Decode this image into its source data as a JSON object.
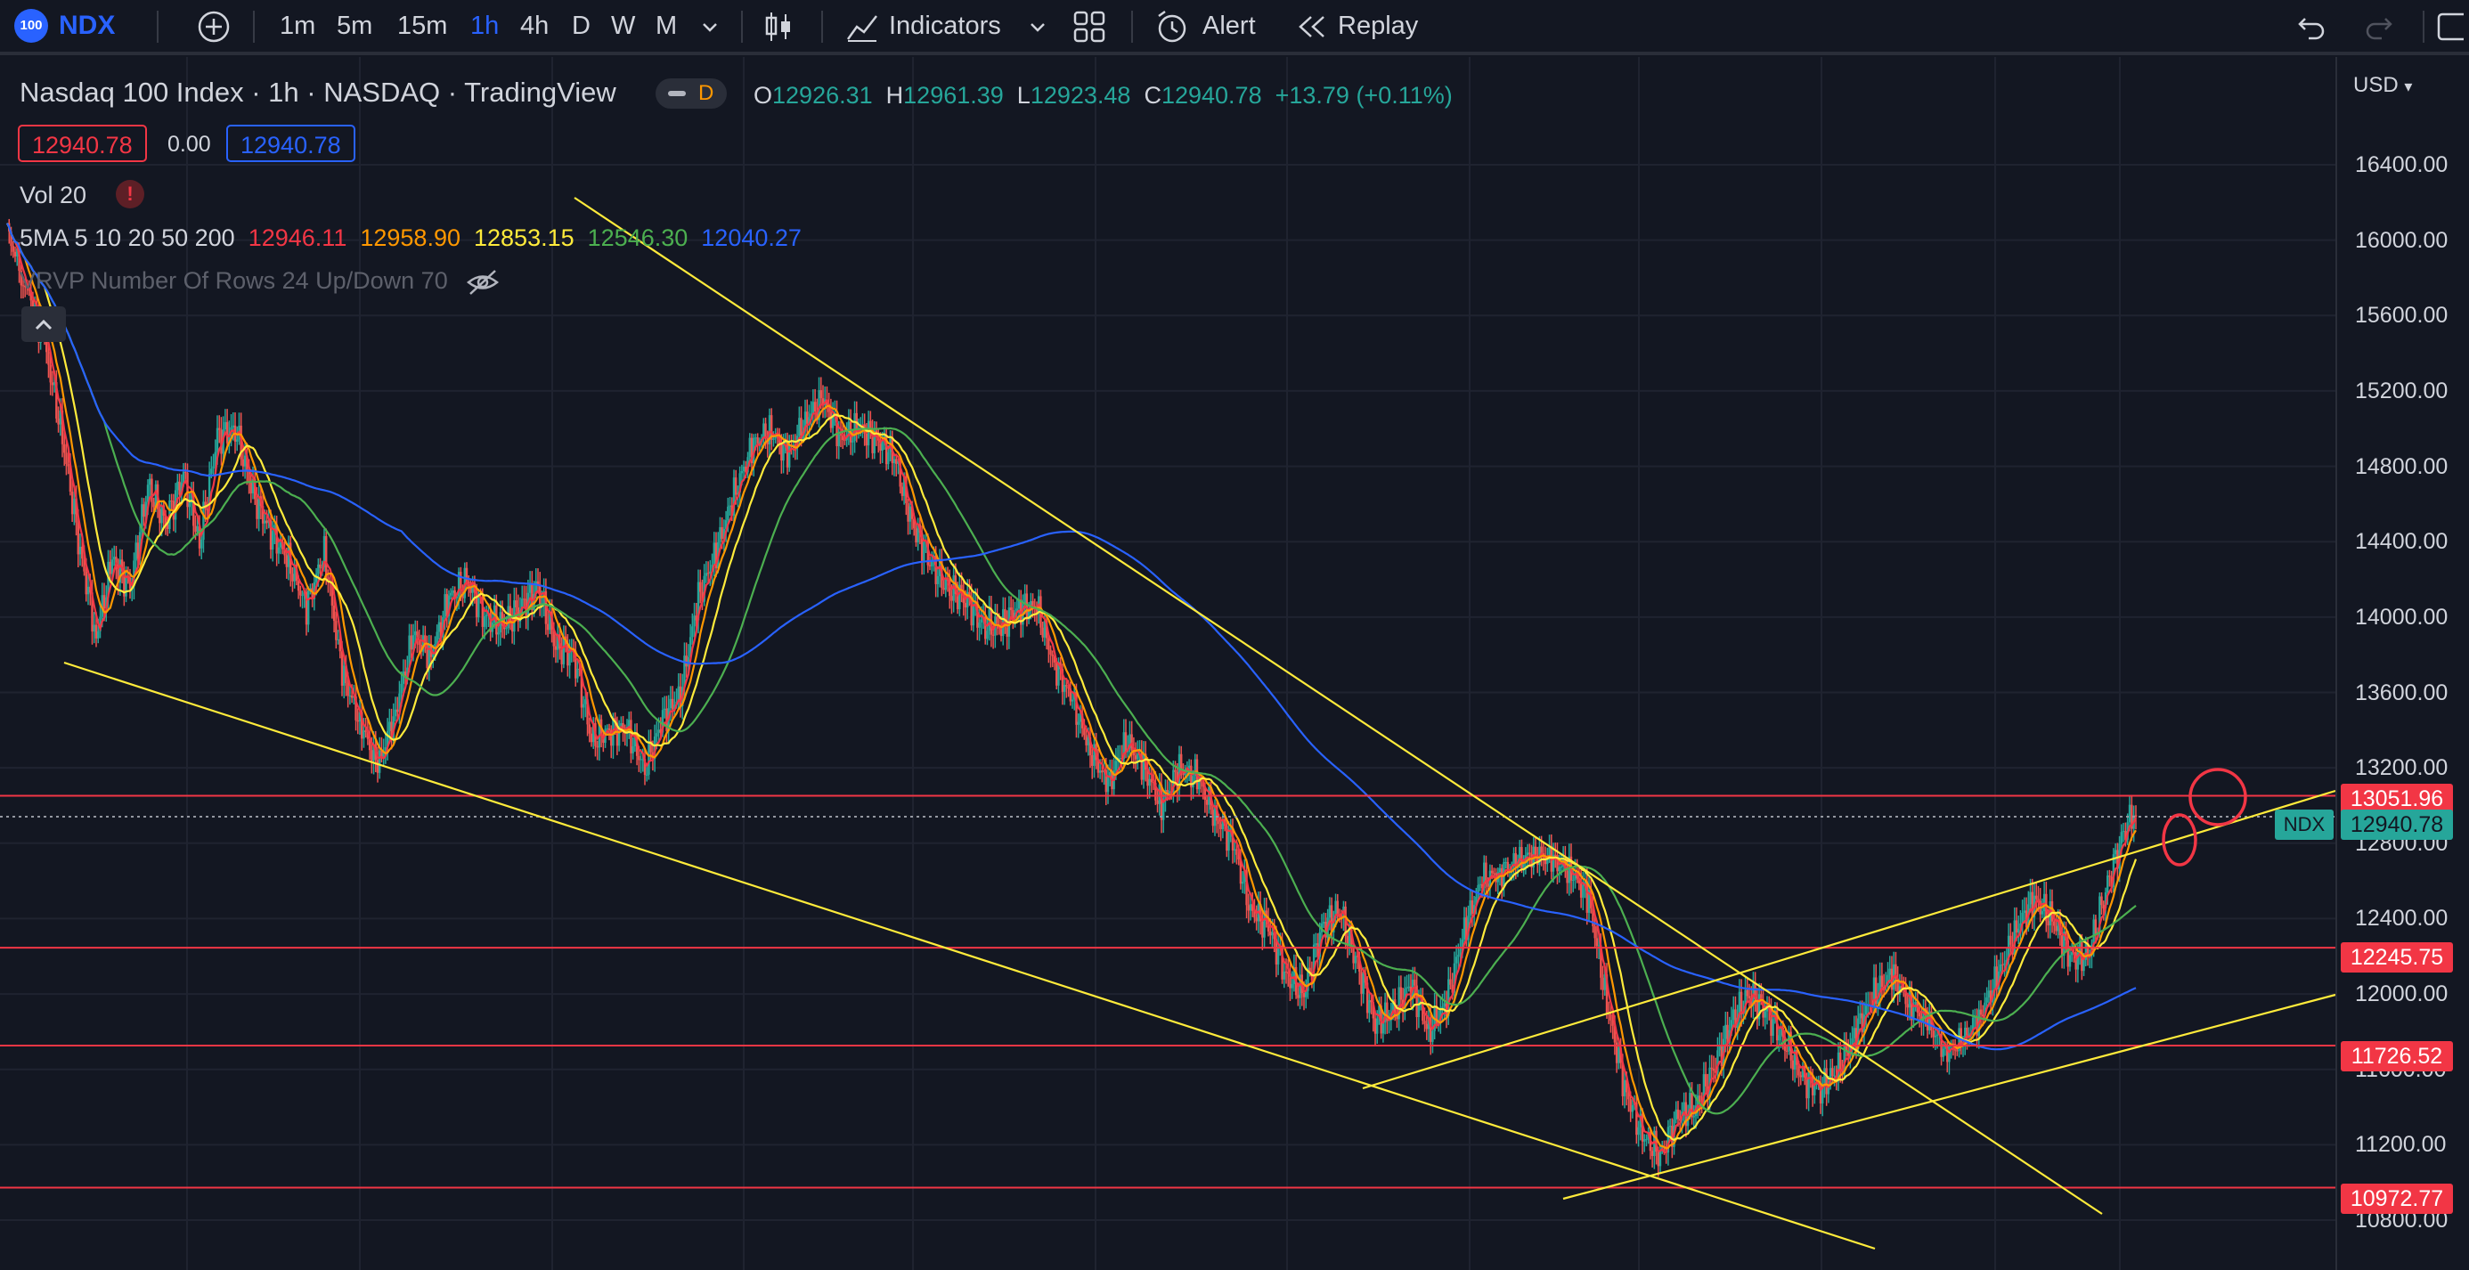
{
  "toolbar": {
    "symbol_badge": "100",
    "symbol": "NDX",
    "add_icon": "plus-circle-icon",
    "intervals": [
      "1m",
      "5m",
      "15m",
      "1h",
      "4h",
      "D",
      "W",
      "M"
    ],
    "active_interval": "1h",
    "indicators_label": "Indicators",
    "alert_label": "Alert",
    "replay_label": "Replay",
    "accent_color": "#2962ff"
  },
  "legend": {
    "title": "Nasdaq 100 Index · 1h · NASDAQ · TradingView",
    "badge": "D",
    "ohlc": {
      "o_label": "O",
      "o": "12926.31",
      "h_label": "H",
      "h": "12961.39",
      "l_label": "L",
      "l": "12923.48",
      "c_label": "C",
      "c": "12940.78",
      "change": "+13.79 (+0.11%)"
    },
    "bid": "12940.78",
    "spread": "0.00",
    "ask": "12940.78",
    "vol": "Vol 20",
    "sma_label": "5MA 5 10 20 50 200",
    "sma_values": [
      "12946.11",
      "12958.90",
      "12853.15",
      "12546.30",
      "12040.27"
    ],
    "vrvp": "VRVP Number Of Rows 24 Up/Down 70"
  },
  "axis": {
    "currency": "USD",
    "labels": [
      "16400.00",
      "16000.00",
      "15600.00",
      "15200.00",
      "14800.00",
      "14400.00",
      "14000.00",
      "13600.00",
      "13200.00",
      "12800.00",
      "12400.00",
      "12000.00",
      "11600.00",
      "11200.00",
      "10800.00"
    ],
    "current_symbol": "NDX",
    "current_price": "12940.78",
    "levels": [
      "13051.96",
      "12245.75",
      "11726.52",
      "10972.77"
    ]
  },
  "chart_data": {
    "type": "candlestick",
    "symbol": "NDX",
    "interval": "1h",
    "y_range": [
      10750,
      16550
    ],
    "horizontal_levels": [
      13051.96,
      12245.75,
      11726.52,
      10972.77
    ],
    "last_price": 12940.78,
    "ma_colors": [
      "#f23645",
      "#ff9800",
      "#ffeb3b",
      "#4caf50",
      "#2962ff"
    ],
    "trendline_color": "#ffeb3b",
    "level_color": "#f23645"
  }
}
